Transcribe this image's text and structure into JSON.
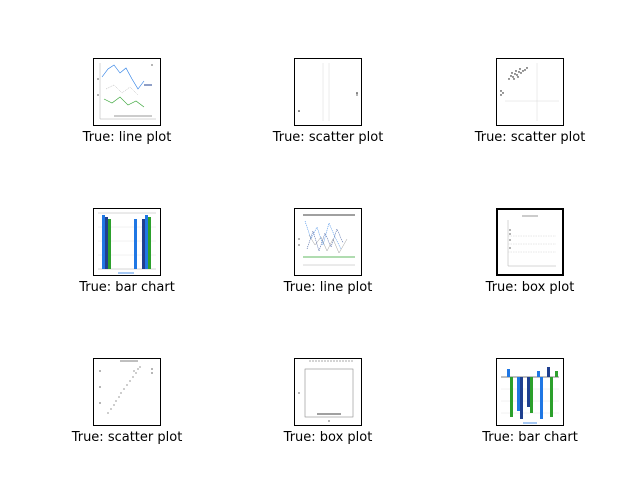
{
  "chart_data": [
    {
      "type": "line",
      "caption": "True: line plot"
    },
    {
      "type": "scatter",
      "caption": "True: scatter plot"
    },
    {
      "type": "scatter",
      "caption": "True: scatter plot"
    },
    {
      "type": "bar",
      "caption": "True: bar chart"
    },
    {
      "type": "line",
      "caption": "True: line plot"
    },
    {
      "type": "box",
      "caption": "True: box plot"
    },
    {
      "type": "scatter",
      "caption": "True: scatter plot"
    },
    {
      "type": "box",
      "caption": "True: box plot"
    },
    {
      "type": "bar",
      "caption": "True: bar chart"
    }
  ],
  "colors": {
    "blue": "#1f77e4",
    "green": "#2ca02c",
    "navy": "#1f3f8f",
    "grid": "#bdbdbd",
    "dark": "#000000"
  }
}
